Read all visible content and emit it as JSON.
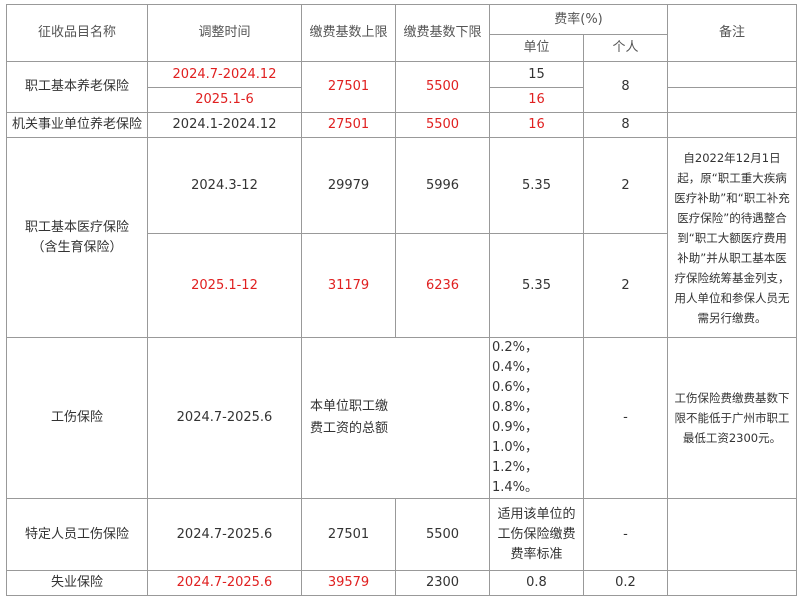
{
  "headers": {
    "name": "征收品目名称",
    "time": "调整时间",
    "upper": "缴费基数上限",
    "lower": "缴费基数下限",
    "rate": "费率(%)",
    "unit": "单位",
    "personal": "个人",
    "remark": "备注"
  },
  "pension": {
    "name": "职工基本养老保险",
    "time1": "2024.7-2024.12",
    "time2": "2025.1-6",
    "upper": "27501",
    "lower": "5500",
    "unit1": "15",
    "unit2": "16",
    "personal": "8"
  },
  "gov_pension": {
    "name": "机关事业单位养老保险",
    "time": "2024.1-2024.12",
    "upper": "27501",
    "lower": "5500",
    "unit": "16",
    "personal": "8"
  },
  "medical": {
    "name": "职工基本医疗保险",
    "name_sub": "（含生育保险）",
    "time1": "2024.3-12",
    "upper1": "29979",
    "lower1": "5996",
    "unit1": "5.35",
    "personal1": "2",
    "time2": "2025.1-12",
    "upper2": "31179",
    "lower2": "6236",
    "unit2": "5.35",
    "personal2": "2",
    "remark": "自2022年12月1日起，原“职工重大疾病医疗补助”和“职工补充医疗保险”的待遇整合到“职工大额医疗费用补助”并从职工基本医疗保险统筹基金列支，用人单位和参保人员无需另行缴费。"
  },
  "injury": {
    "name": "工伤保险",
    "time": "2024.7-2025.6",
    "base": "本单位职工缴费工资的总额",
    "rates": "0.2%，0.4%，0.6%，0.8%，0.9%，1.0%，1.2%，1.4%。",
    "personal": "-",
    "remark": "工伤保险费缴费基数下限不能低于广州市职工最低工资2300元。"
  },
  "special_injury": {
    "name": "特定人员工伤保险",
    "time": "2024.7-2025.6",
    "upper": "27501",
    "lower": "5500",
    "unit": "适用该单位的工伤保险缴费费率标准",
    "personal": "-"
  },
  "unemployment": {
    "name": "失业保险",
    "time": "2024.7-2025.6",
    "upper": "39579",
    "lower": "2300",
    "unit": "0.8",
    "personal": "0.2"
  }
}
